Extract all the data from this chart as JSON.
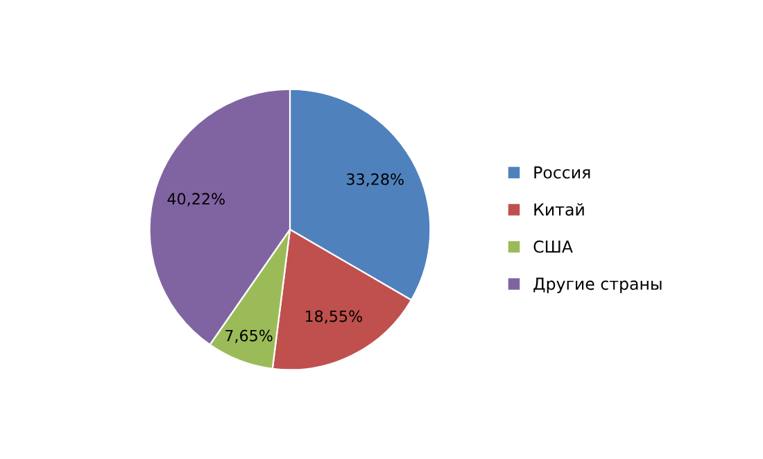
{
  "chart_data": {
    "type": "pie",
    "categories": [
      "Россия",
      "Китай",
      "США",
      "Другие страны"
    ],
    "values": [
      33.28,
      18.55,
      7.65,
      40.22
    ],
    "value_labels": [
      "33,28%",
      "18,55%",
      "7,65%",
      "40,22%"
    ],
    "colors": [
      "#4f81bd",
      "#c0504d",
      "#9bbb59",
      "#8064a2"
    ],
    "legend": "right"
  }
}
